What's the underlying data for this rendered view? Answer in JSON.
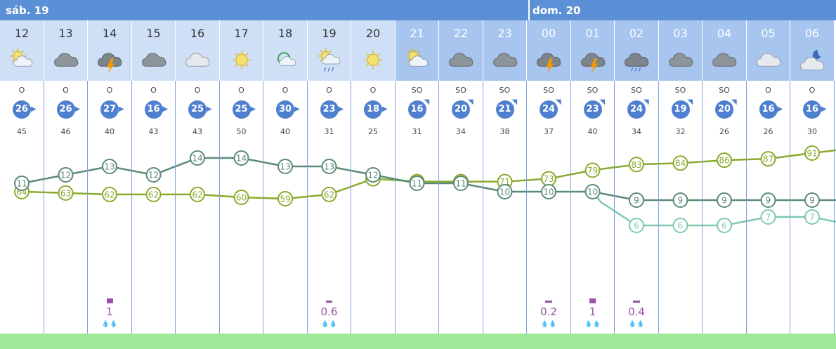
{
  "days": [
    {
      "label": "sáb. 19"
    },
    {
      "label": "dom. 20"
    }
  ],
  "hours": [
    "12",
    "13",
    "14",
    "15",
    "16",
    "17",
    "18",
    "19",
    "20",
    "21",
    "22",
    "23",
    "00",
    "01",
    "02",
    "03",
    "04",
    "05",
    "06"
  ],
  "daylight": [
    true,
    true,
    true,
    true,
    true,
    true,
    true,
    true,
    true,
    false,
    false,
    false,
    false,
    false,
    false,
    false,
    false,
    false,
    false
  ],
  "weather_icons": [
    "sun-cloud",
    "cloud",
    "thunder-cloud",
    "cloud",
    "cloud-light",
    "sun",
    "sun-cloud-green",
    "sun-rain",
    "sun",
    "sun-cloud",
    "cloud",
    "cloud",
    "thunder-cloud",
    "thunder-cloud",
    "rain-cloud",
    "cloud",
    "cloud",
    "cloud-light",
    "moon-cloud"
  ],
  "wind_dir": [
    "O",
    "O",
    "O",
    "O",
    "O",
    "O",
    "O",
    "O",
    "O",
    "SO",
    "SO",
    "SO",
    "SO",
    "SO",
    "SO",
    "SO",
    "SO",
    "O",
    "O"
  ],
  "wind_speed": [
    "26",
    "26",
    "27",
    "16",
    "25",
    "25",
    "30",
    "23",
    "18",
    "16",
    "20",
    "21",
    "24",
    "23",
    "24",
    "19",
    "20",
    "16",
    "16"
  ],
  "gusts": [
    "45",
    "46",
    "40",
    "43",
    "43",
    "50",
    "40",
    "31",
    "25",
    "31",
    "34",
    "38",
    "37",
    "40",
    "34",
    "32",
    "26",
    "26",
    "30"
  ],
  "precip": [
    "",
    "",
    "1",
    "",
    "",
    "",
    "",
    "0.6",
    "",
    "",
    "",
    "",
    "0.2",
    "1",
    "0.4",
    "",
    "",
    "",
    ""
  ],
  "colors": {
    "day_bar": "#5b8fd6",
    "temp_line": "#5c8a78",
    "humidity_line": "#8aaa2e",
    "feels_line": "#7fc8b0",
    "precip": "#9a4fa8"
  },
  "chart_data": {
    "type": "line",
    "x": [
      "12",
      "13",
      "14",
      "15",
      "16",
      "17",
      "18",
      "19",
      "20",
      "21",
      "22",
      "23",
      "00",
      "01",
      "02",
      "03",
      "04",
      "05",
      "06"
    ],
    "series": [
      {
        "values": [
          11,
          12,
          13,
          12,
          14,
          14,
          13,
          13,
          12,
          11,
          11,
          10,
          10,
          10,
          9,
          9,
          9,
          9,
          9
        ]
      },
      {
        "values": [
          null,
          null,
          null,
          null,
          null,
          null,
          null,
          null,
          null,
          null,
          null,
          null,
          null,
          null,
          6,
          6,
          6,
          7,
          7
        ]
      },
      {
        "values": [
          64,
          63,
          62,
          62,
          62,
          60,
          59,
          62,
          73,
          71,
          71,
          71,
          73,
          79,
          83,
          84,
          86,
          87,
          91
        ]
      }
    ]
  }
}
